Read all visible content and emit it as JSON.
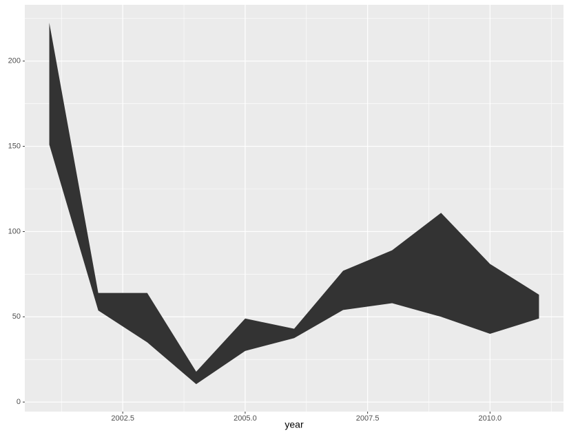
{
  "chart_data": {
    "type": "ribbon",
    "x_label": "year",
    "x": [
      2001,
      2002,
      2003,
      2004,
      2005,
      2006,
      2007,
      2008,
      2009,
      2010,
      2011
    ],
    "ymax": [
      222.5,
      64,
      64,
      17.8,
      49,
      43,
      77,
      89,
      111,
      81,
      63
    ],
    "ymin": [
      151,
      53.7,
      35,
      10.5,
      30,
      37.5,
      54,
      58,
      50,
      40,
      49
    ],
    "color": "#333333",
    "xlim": [
      2000.5,
      2011.5
    ],
    "xticks": [
      2002.5,
      {
        "value": 2005,
        "label": "2005.0"
      },
      2007.5,
      {
        "value": 2010,
        "label": "2010.0"
      }
    ],
    "ylim": [
      -5.6,
      233
    ],
    "yticks": [
      0,
      50,
      100,
      150,
      200
    ],
    "grid": true
  }
}
